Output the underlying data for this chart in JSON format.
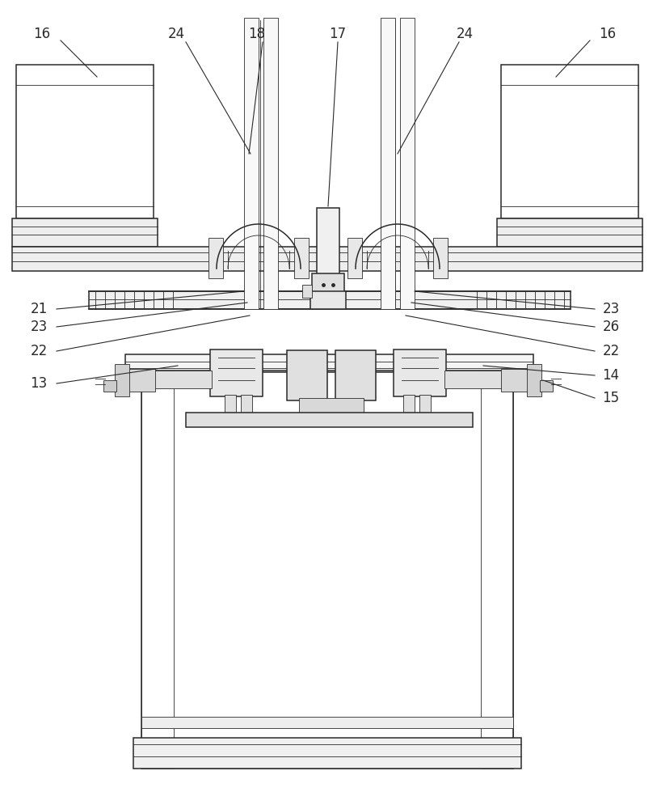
{
  "bg_color": "#ffffff",
  "line_color": "#2a2a2a",
  "line_width": 1.1,
  "thin_line": 0.6,
  "figure_width": 8.13,
  "figure_height": 10.0
}
